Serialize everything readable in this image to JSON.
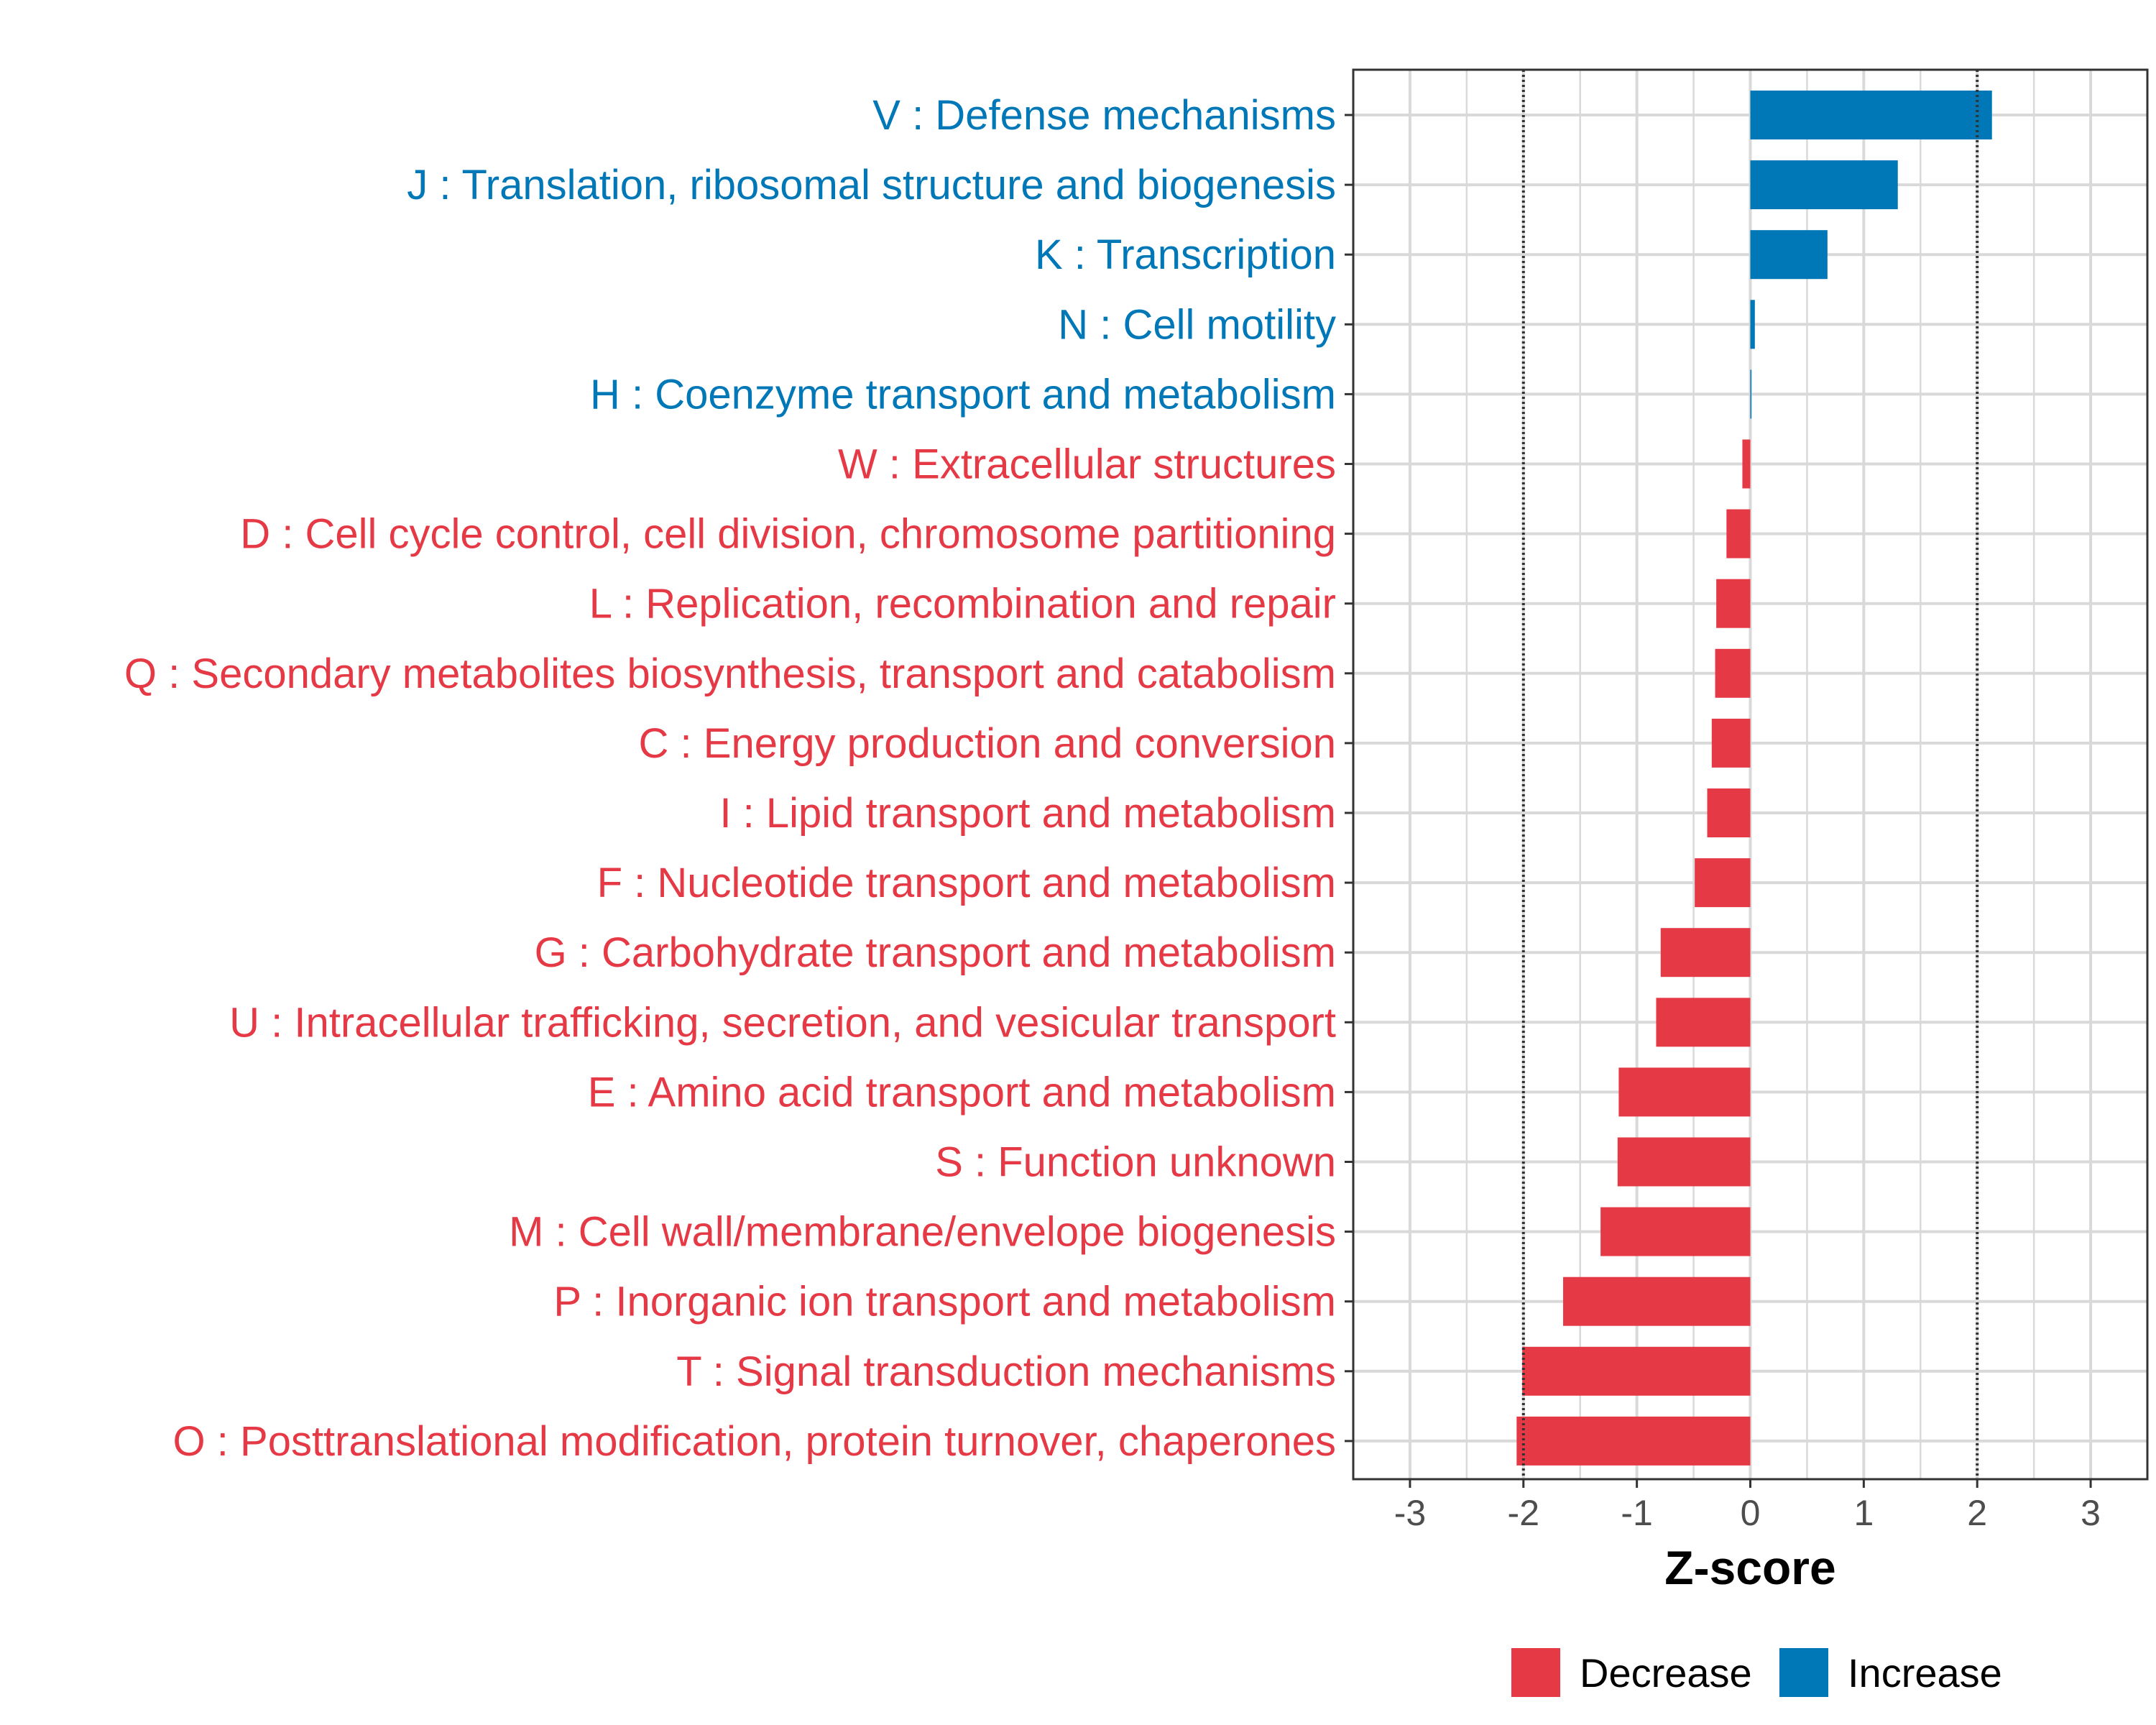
{
  "chart_data": {
    "type": "bar",
    "orientation": "horizontal",
    "title": "",
    "xlabel": "Z-score",
    "ylabel": "",
    "xlim": [
      -3.5,
      3.5
    ],
    "x_ticks": [
      -3,
      -2,
      -1,
      0,
      1,
      2,
      3
    ],
    "x_tick_labels": [
      "-3",
      "-2",
      "-1",
      "0",
      "1",
      "2",
      "3"
    ],
    "reference_lines": [
      -2,
      2
    ],
    "grid": true,
    "legend_position": "bottom",
    "colors": {
      "Decrease": "#e63946",
      "Increase": "#0077b6"
    },
    "legend": [
      {
        "label": "Decrease",
        "color": "#e63946"
      },
      {
        "label": "Increase",
        "color": "#0077b6"
      }
    ],
    "categories": [
      {
        "label": "V : Defense mechanisms",
        "value": 2.13,
        "group": "Increase"
      },
      {
        "label": "J : Translation, ribosomal structure and biogenesis",
        "value": 1.3,
        "group": "Increase"
      },
      {
        "label": "K : Transcription",
        "value": 0.68,
        "group": "Increase"
      },
      {
        "label": "N : Cell motility",
        "value": 0.04,
        "group": "Increase"
      },
      {
        "label": "H : Coenzyme transport and metabolism",
        "value": 0.01,
        "group": "Increase"
      },
      {
        "label": "W : Extracellular structures",
        "value": -0.07,
        "group": "Decrease"
      },
      {
        "label": "D : Cell cycle control, cell division, chromosome partitioning",
        "value": -0.21,
        "group": "Decrease"
      },
      {
        "label": "L : Replication, recombination and repair",
        "value": -0.3,
        "group": "Decrease"
      },
      {
        "label": "Q : Secondary metabolites biosynthesis, transport and catabolism",
        "value": -0.31,
        "group": "Decrease"
      },
      {
        "label": "C : Energy production and conversion",
        "value": -0.34,
        "group": "Decrease"
      },
      {
        "label": "I : Lipid transport and metabolism",
        "value": -0.38,
        "group": "Decrease"
      },
      {
        "label": "F : Nucleotide transport and metabolism",
        "value": -0.49,
        "group": "Decrease"
      },
      {
        "label": "G : Carbohydrate transport and metabolism",
        "value": -0.79,
        "group": "Decrease"
      },
      {
        "label": "U : Intracellular trafficking, secretion, and vesicular transport",
        "value": -0.83,
        "group": "Decrease"
      },
      {
        "label": "E : Amino acid transport and metabolism",
        "value": -1.16,
        "group": "Decrease"
      },
      {
        "label": "S : Function unknown",
        "value": -1.17,
        "group": "Decrease"
      },
      {
        "label": "M : Cell wall/membrane/envelope biogenesis",
        "value": -1.32,
        "group": "Decrease"
      },
      {
        "label": "P : Inorganic ion transport and metabolism",
        "value": -1.65,
        "group": "Decrease"
      },
      {
        "label": "T : Signal transduction mechanisms",
        "value": -2.01,
        "group": "Decrease"
      },
      {
        "label": "O : Posttranslational modification, protein turnover, chaperones",
        "value": -2.06,
        "group": "Decrease"
      }
    ]
  }
}
